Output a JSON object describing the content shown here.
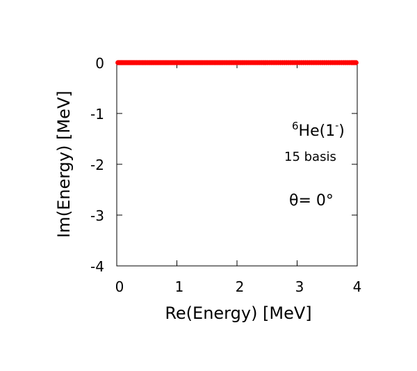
{
  "chart_data": {
    "type": "scatter",
    "title": "",
    "xlabel": "Re(Energy) [MeV]",
    "ylabel": "Im(Energy) [MeV]",
    "xlim": [
      0,
      4
    ],
    "ylim": [
      -4,
      0
    ],
    "xticks": [
      "0",
      "1",
      "2",
      "3",
      "4"
    ],
    "yticks": [
      "0",
      "-1",
      "-2",
      "-3",
      "-4"
    ],
    "grid": false,
    "series": [
      {
        "color": "#ff0000",
        "marker": "circle",
        "points_note_x": [
          0.02,
          0.06,
          0.1,
          0.15,
          0.2,
          0.25,
          0.3,
          0.36,
          0.42,
          0.48,
          0.55,
          0.62,
          0.7,
          0.78,
          0.86,
          0.95,
          1.04,
          1.13,
          1.23,
          1.33,
          1.43,
          1.54,
          1.65,
          1.76,
          1.88,
          2.0,
          2.12,
          2.25,
          2.38,
          2.51,
          2.65,
          2.79,
          2.93,
          3.07,
          3.21,
          3.35,
          3.49,
          3.63,
          3.77,
          3.9,
          3.98
        ],
        "y_value": 0
      }
    ],
    "annotations": {
      "nucleus_mass": "6",
      "nucleus_symbol": "He(1",
      "nucleus_parity": "-",
      "nucleus_close": ")",
      "basis": "15 basis",
      "theta": "θ=  0°"
    }
  }
}
